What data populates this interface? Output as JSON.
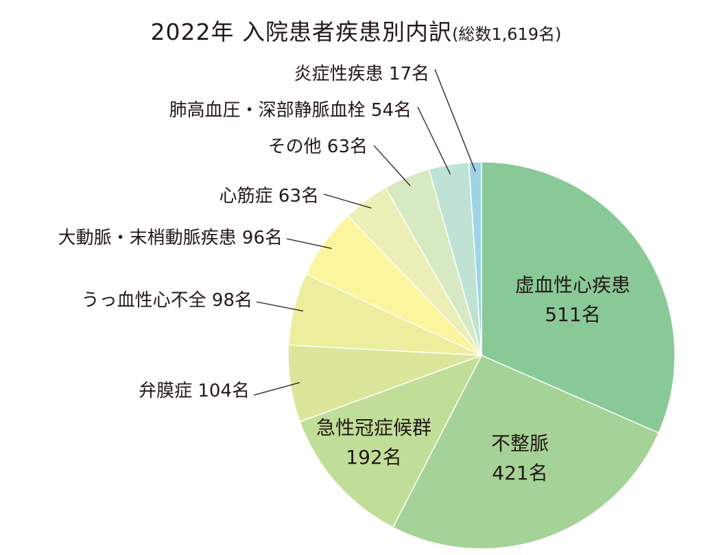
{
  "chart_data": {
    "type": "pie",
    "title": "2022年 入院患者疾患別内訳",
    "subtitle": "(総数1,619名)",
    "unit": "名",
    "slices": [
      {
        "label": "虚血性心疾患",
        "value": 511,
        "color": "#89c997"
      },
      {
        "label": "不整脈",
        "value": 421,
        "color": "#a5d296"
      },
      {
        "label": "急性冠症候群",
        "value": 192,
        "color": "#c1de98"
      },
      {
        "label": "弁膜症",
        "value": 104,
        "color": "#dbe69b"
      },
      {
        "label": "うっ血性心不全",
        "value": 98,
        "color": "#ecee9d"
      },
      {
        "label": "大動脈・末梢動脈疾患",
        "value": 96,
        "color": "#fdf59e"
      },
      {
        "label": "心筋症",
        "value": 63,
        "color": "#ecefb6"
      },
      {
        "label": "その他",
        "value": 63,
        "color": "#d7e9c2"
      },
      {
        "label": "肺高血圧・深部静脈血栓",
        "value": 54,
        "color": "#bee3d4"
      },
      {
        "label": "炎症性疾患",
        "value": 17,
        "color": "#9fd4e6"
      }
    ]
  }
}
